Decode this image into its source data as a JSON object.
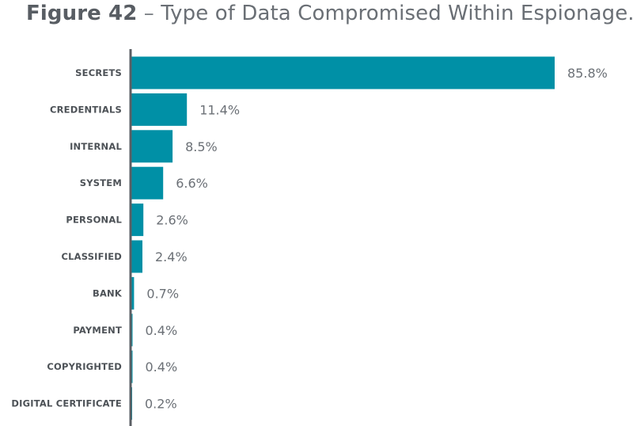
{
  "title": {
    "figure": "Figure 42",
    "separator": "–",
    "text": "Type of Data Compromised Within Espionage."
  },
  "colors": {
    "bar": "#0090a6",
    "axis": "#5b5f64",
    "category_text": "#4d5257",
    "value_text": "#6b7076"
  },
  "chart_data": {
    "type": "bar",
    "orientation": "horizontal",
    "categories": [
      "SECRETS",
      "CREDENTIALS",
      "INTERNAL",
      "SYSTEM",
      "PERSONAL",
      "CLASSIFIED",
      "BANK",
      "PAYMENT",
      "COPYRIGHTED",
      "DIGITAL CERTIFICATE"
    ],
    "values": [
      85.8,
      11.4,
      8.5,
      6.6,
      2.6,
      2.4,
      0.7,
      0.4,
      0.4,
      0.2
    ],
    "value_labels": [
      "85.8%",
      "11.4%",
      "8.5%",
      "6.6%",
      "2.6%",
      "2.4%",
      "0.7%",
      "0.4%",
      "0.4%",
      "0.2%"
    ],
    "unit": "%",
    "xlim": [
      0,
      85.8
    ],
    "grid": false
  }
}
